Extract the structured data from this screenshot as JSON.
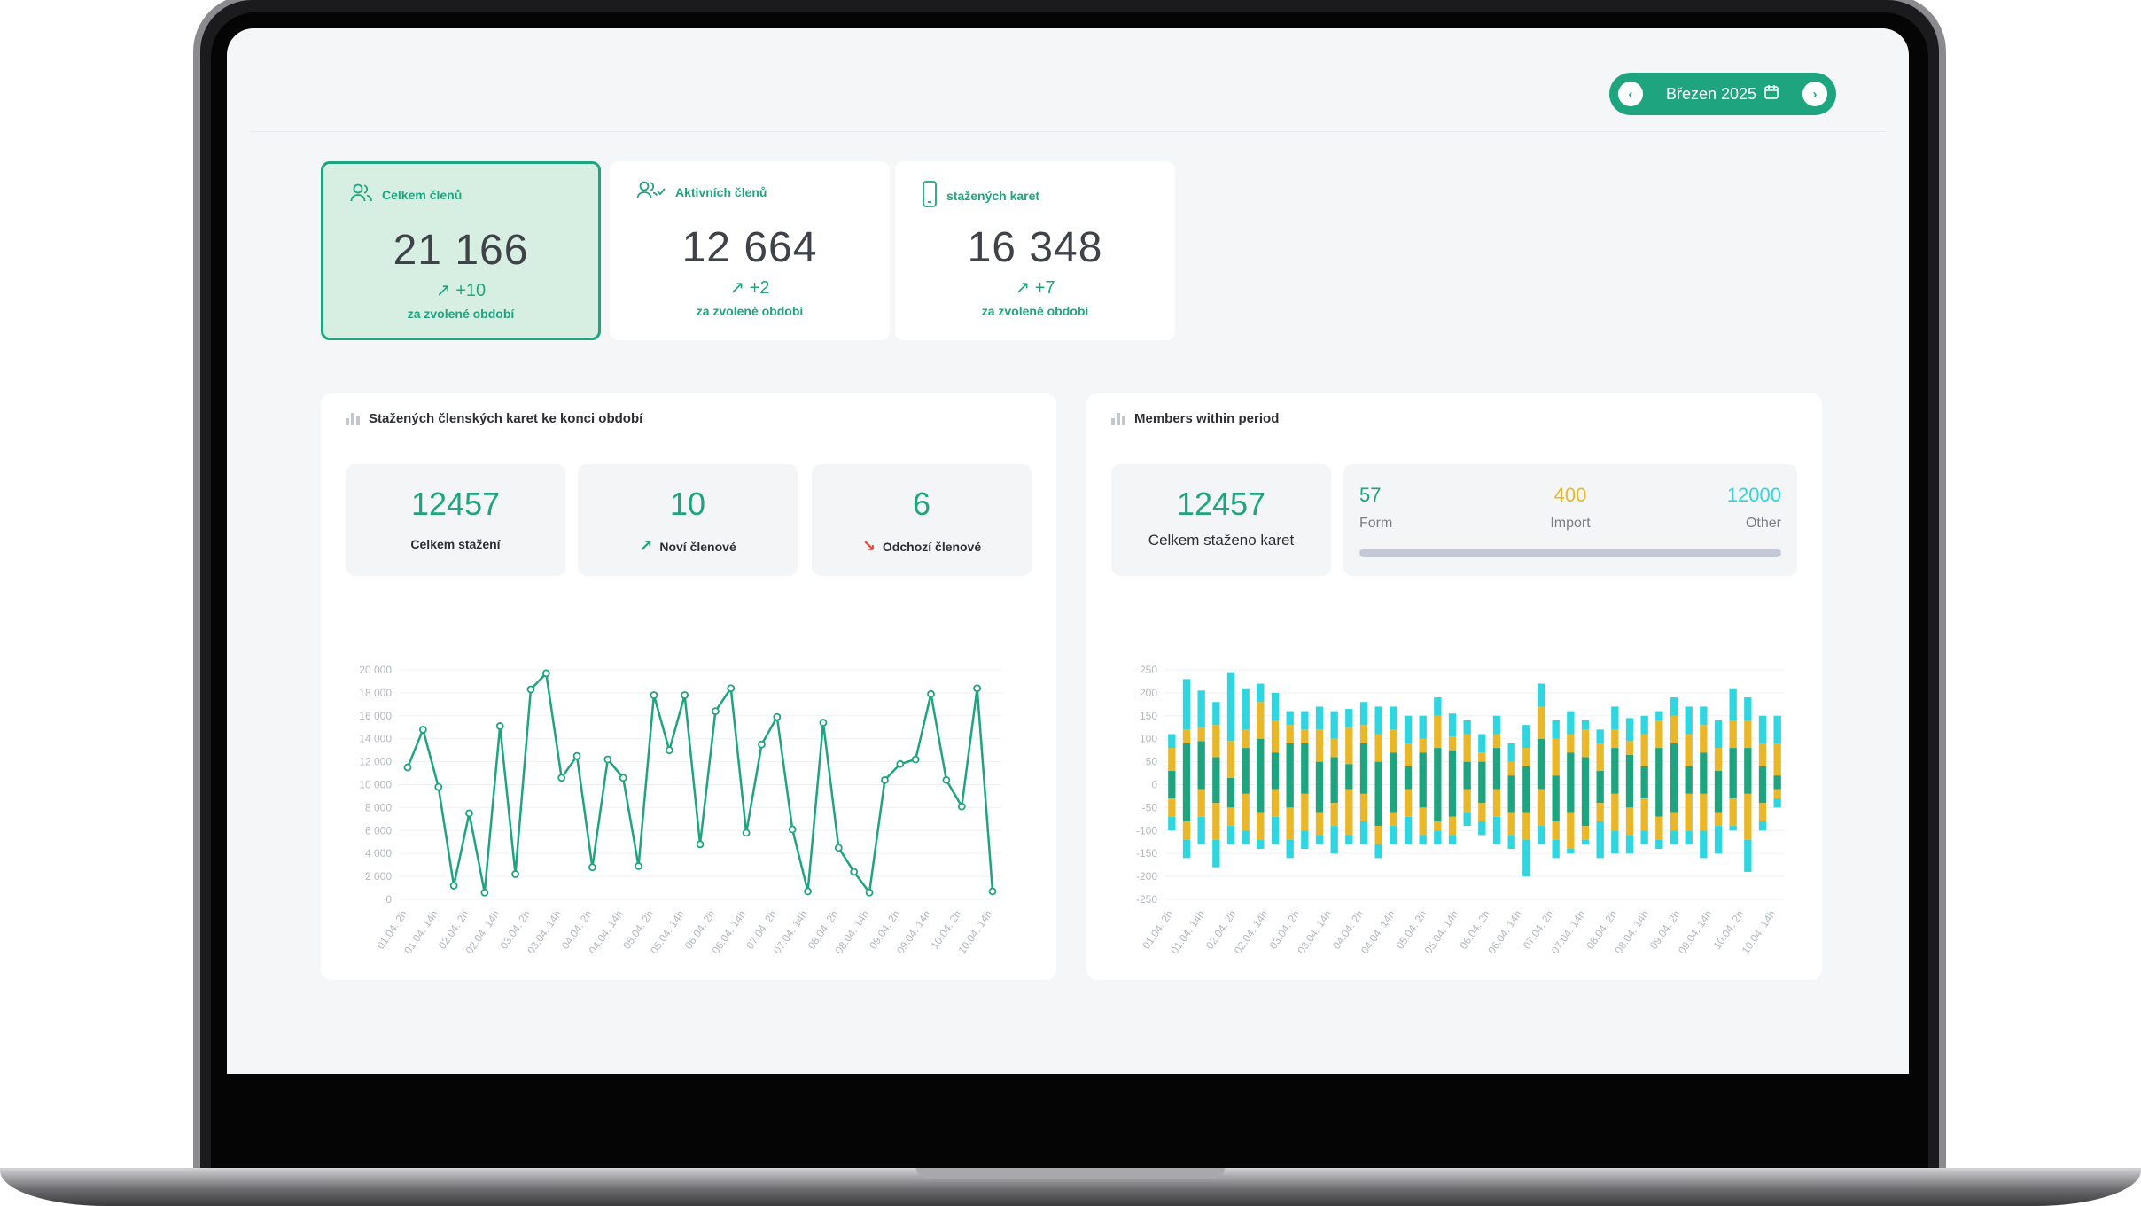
{
  "header": {
    "period_label": "Březen 2025",
    "prev_icon": "chevron-left-icon",
    "next_icon": "chevron-right-icon",
    "calendar_icon": "calendar-icon"
  },
  "stat_cards": [
    {
      "title": "Celkem členů",
      "value": "21 166",
      "delta": "+10",
      "sub": "za zvolené období",
      "icon": "users-icon",
      "active": true
    },
    {
      "title": "Aktivních členů",
      "value": "12 664",
      "delta": "+2",
      "sub": "za zvolené období",
      "icon": "users-check-icon",
      "active": false
    },
    {
      "title": "stažených karet",
      "value": "16 348",
      "delta": "+7",
      "sub": "za zvolené období",
      "icon": "phone-icon",
      "active": false
    }
  ],
  "left_panel": {
    "title": "Stažených členských karet ke konci období",
    "kpis": [
      {
        "value": "12457",
        "label": "Celkem stažení"
      },
      {
        "value": "10",
        "label": "Noví členové"
      },
      {
        "value": "6",
        "label": "Odchozí členové"
      }
    ]
  },
  "right_panel": {
    "title": "Members within period",
    "total_value": "12457",
    "total_label": "Celkem staženo karet",
    "breakdown": [
      {
        "value": "57",
        "label": "Form",
        "color": "#1ea47f"
      },
      {
        "value": "400",
        "label": "Import",
        "color": "#e8b82a"
      },
      {
        "value": "12000",
        "label": "Other",
        "color": "#2fd6e0"
      }
    ]
  },
  "colors": {
    "accent": "#1ea47f",
    "yellow": "#e8b82a",
    "cyan": "#2fd6e0",
    "red": "#e0453a"
  },
  "chart_data": [
    {
      "type": "line",
      "series": [
        {
          "values": [
            11500,
            14800,
            9800,
            1200,
            7500,
            600,
            15100,
            2200,
            18300,
            19700,
            10600,
            12500,
            2800,
            12200,
            10600,
            2900,
            17800,
            13000,
            17800,
            4800,
            16400,
            18400,
            5800,
            13500,
            15900,
            6100,
            700,
            15400,
            4500,
            2400,
            600,
            10400,
            11800,
            12200,
            17900,
            10400,
            8100,
            18400,
            700
          ]
        }
      ],
      "x_tick_labels": [
        "01.04. 2h",
        "01.04. 14h",
        "02.04. 2h",
        "02.04. 14h",
        "03.04. 2h",
        "03.04. 14h",
        "04.04. 2h",
        "04.04. 14h",
        "05.04. 2h",
        "05.04. 14h",
        "06.04. 2h",
        "06.04. 14h",
        "07.04. 2h",
        "07.04. 14h",
        "08.04. 2h",
        "08.04. 14h",
        "09.04. 2h",
        "09.04. 14h",
        "10.04. 2h",
        "10.04. 14h"
      ],
      "y_tick_labels": [
        "0",
        "2 000",
        "4 000",
        "6 000",
        "8 000",
        "10 000",
        "12 000",
        "14 000",
        "16 000",
        "18 000",
        "20 000"
      ],
      "ylim": [
        0,
        20000
      ],
      "grid": true
    },
    {
      "type": "bar",
      "stacked": true,
      "x_tick_labels": [
        "01.04. 2h",
        "01.04. 14h",
        "02.04. 2h",
        "02.04. 14h",
        "03.04. 2h",
        "03.04. 14h",
        "04.04. 2h",
        "04.04. 14h",
        "05.04. 2h",
        "05.04. 14h",
        "06.04. 2h",
        "06.04. 14h",
        "07.04. 2h",
        "07.04. 14h",
        "08.04. 2h",
        "08.04. 14h",
        "09.04. 2h",
        "09.04. 14h",
        "10.04. 2h",
        "10.04. 14h"
      ],
      "y_tick_labels": [
        "-250",
        "-200",
        "-150",
        "-100",
        "-50",
        "0",
        "50",
        "100",
        "150",
        "200",
        "250"
      ],
      "ylim": [
        -250,
        250
      ],
      "series": [
        {
          "name": "Form",
          "color": "#1ea47f",
          "pos": [
            30,
            90,
            95,
            60,
            15,
            80,
            100,
            70,
            90,
            90,
            50,
            60,
            45,
            90,
            50,
            70,
            40,
            70,
            80,
            75,
            50,
            50,
            80,
            20,
            40,
            100,
            20,
            70,
            60,
            30,
            80,
            65,
            40,
            80,
            90,
            40,
            70,
            30,
            80,
            80,
            40,
            20
          ],
          "neg": [
            -30,
            -80,
            -10,
            -40,
            -50,
            -20,
            -60,
            -10,
            -50,
            -20,
            -60,
            -40,
            -10,
            -20,
            -90,
            -60,
            -10,
            -50,
            -80,
            -70,
            -10,
            -40,
            -10,
            -60,
            -60,
            -10,
            -80,
            -60,
            -90,
            -40,
            -20,
            -50,
            -30,
            -70,
            -60,
            -20,
            -20,
            -60,
            -30,
            -20,
            -40,
            -10
          ]
        },
        {
          "name": "Import",
          "color": "#e8b82a",
          "pos": [
            50,
            30,
            30,
            70,
            80,
            40,
            80,
            70,
            40,
            30,
            70,
            40,
            80,
            40,
            60,
            50,
            50,
            30,
            70,
            30,
            60,
            20,
            30,
            30,
            40,
            70,
            80,
            40,
            60,
            60,
            40,
            30,
            70,
            60,
            60,
            70,
            60,
            50,
            60,
            60,
            50,
            70
          ],
          "neg": [
            -40,
            -40,
            -60,
            -80,
            -40,
            -80,
            -60,
            -60,
            -70,
            -80,
            -50,
            -50,
            -100,
            -60,
            -40,
            -30,
            -60,
            -60,
            -20,
            -40,
            -50,
            -40,
            -60,
            -50,
            -60,
            -80,
            -40,
            -80,
            -30,
            -40,
            -80,
            -60,
            -70,
            -50,
            -40,
            -80,
            -80,
            -30,
            -60,
            -100,
            -40,
            -20
          ]
        },
        {
          "name": "Other",
          "color": "#2fd6e0",
          "pos": [
            30,
            110,
            80,
            50,
            150,
            90,
            40,
            60,
            30,
            40,
            50,
            60,
            40,
            50,
            60,
            50,
            60,
            50,
            40,
            50,
            30,
            40,
            40,
            40,
            50,
            50,
            40,
            50,
            20,
            30,
            50,
            50,
            40,
            20,
            40,
            60,
            40,
            60,
            70,
            50,
            60,
            60
          ],
          "neg": [
            -30,
            -40,
            -60,
            -60,
            -40,
            -30,
            -20,
            -60,
            -40,
            -40,
            -20,
            -60,
            -20,
            -50,
            -30,
            -40,
            -60,
            -20,
            -30,
            -20,
            -30,
            -30,
            -60,
            -30,
            -80,
            -40,
            -40,
            -10,
            -10,
            -80,
            -50,
            -40,
            -30,
            -20,
            -30,
            -30,
            -60,
            -60,
            -10,
            -70,
            -20,
            -20
          ]
        }
      ],
      "grid": true
    }
  ]
}
